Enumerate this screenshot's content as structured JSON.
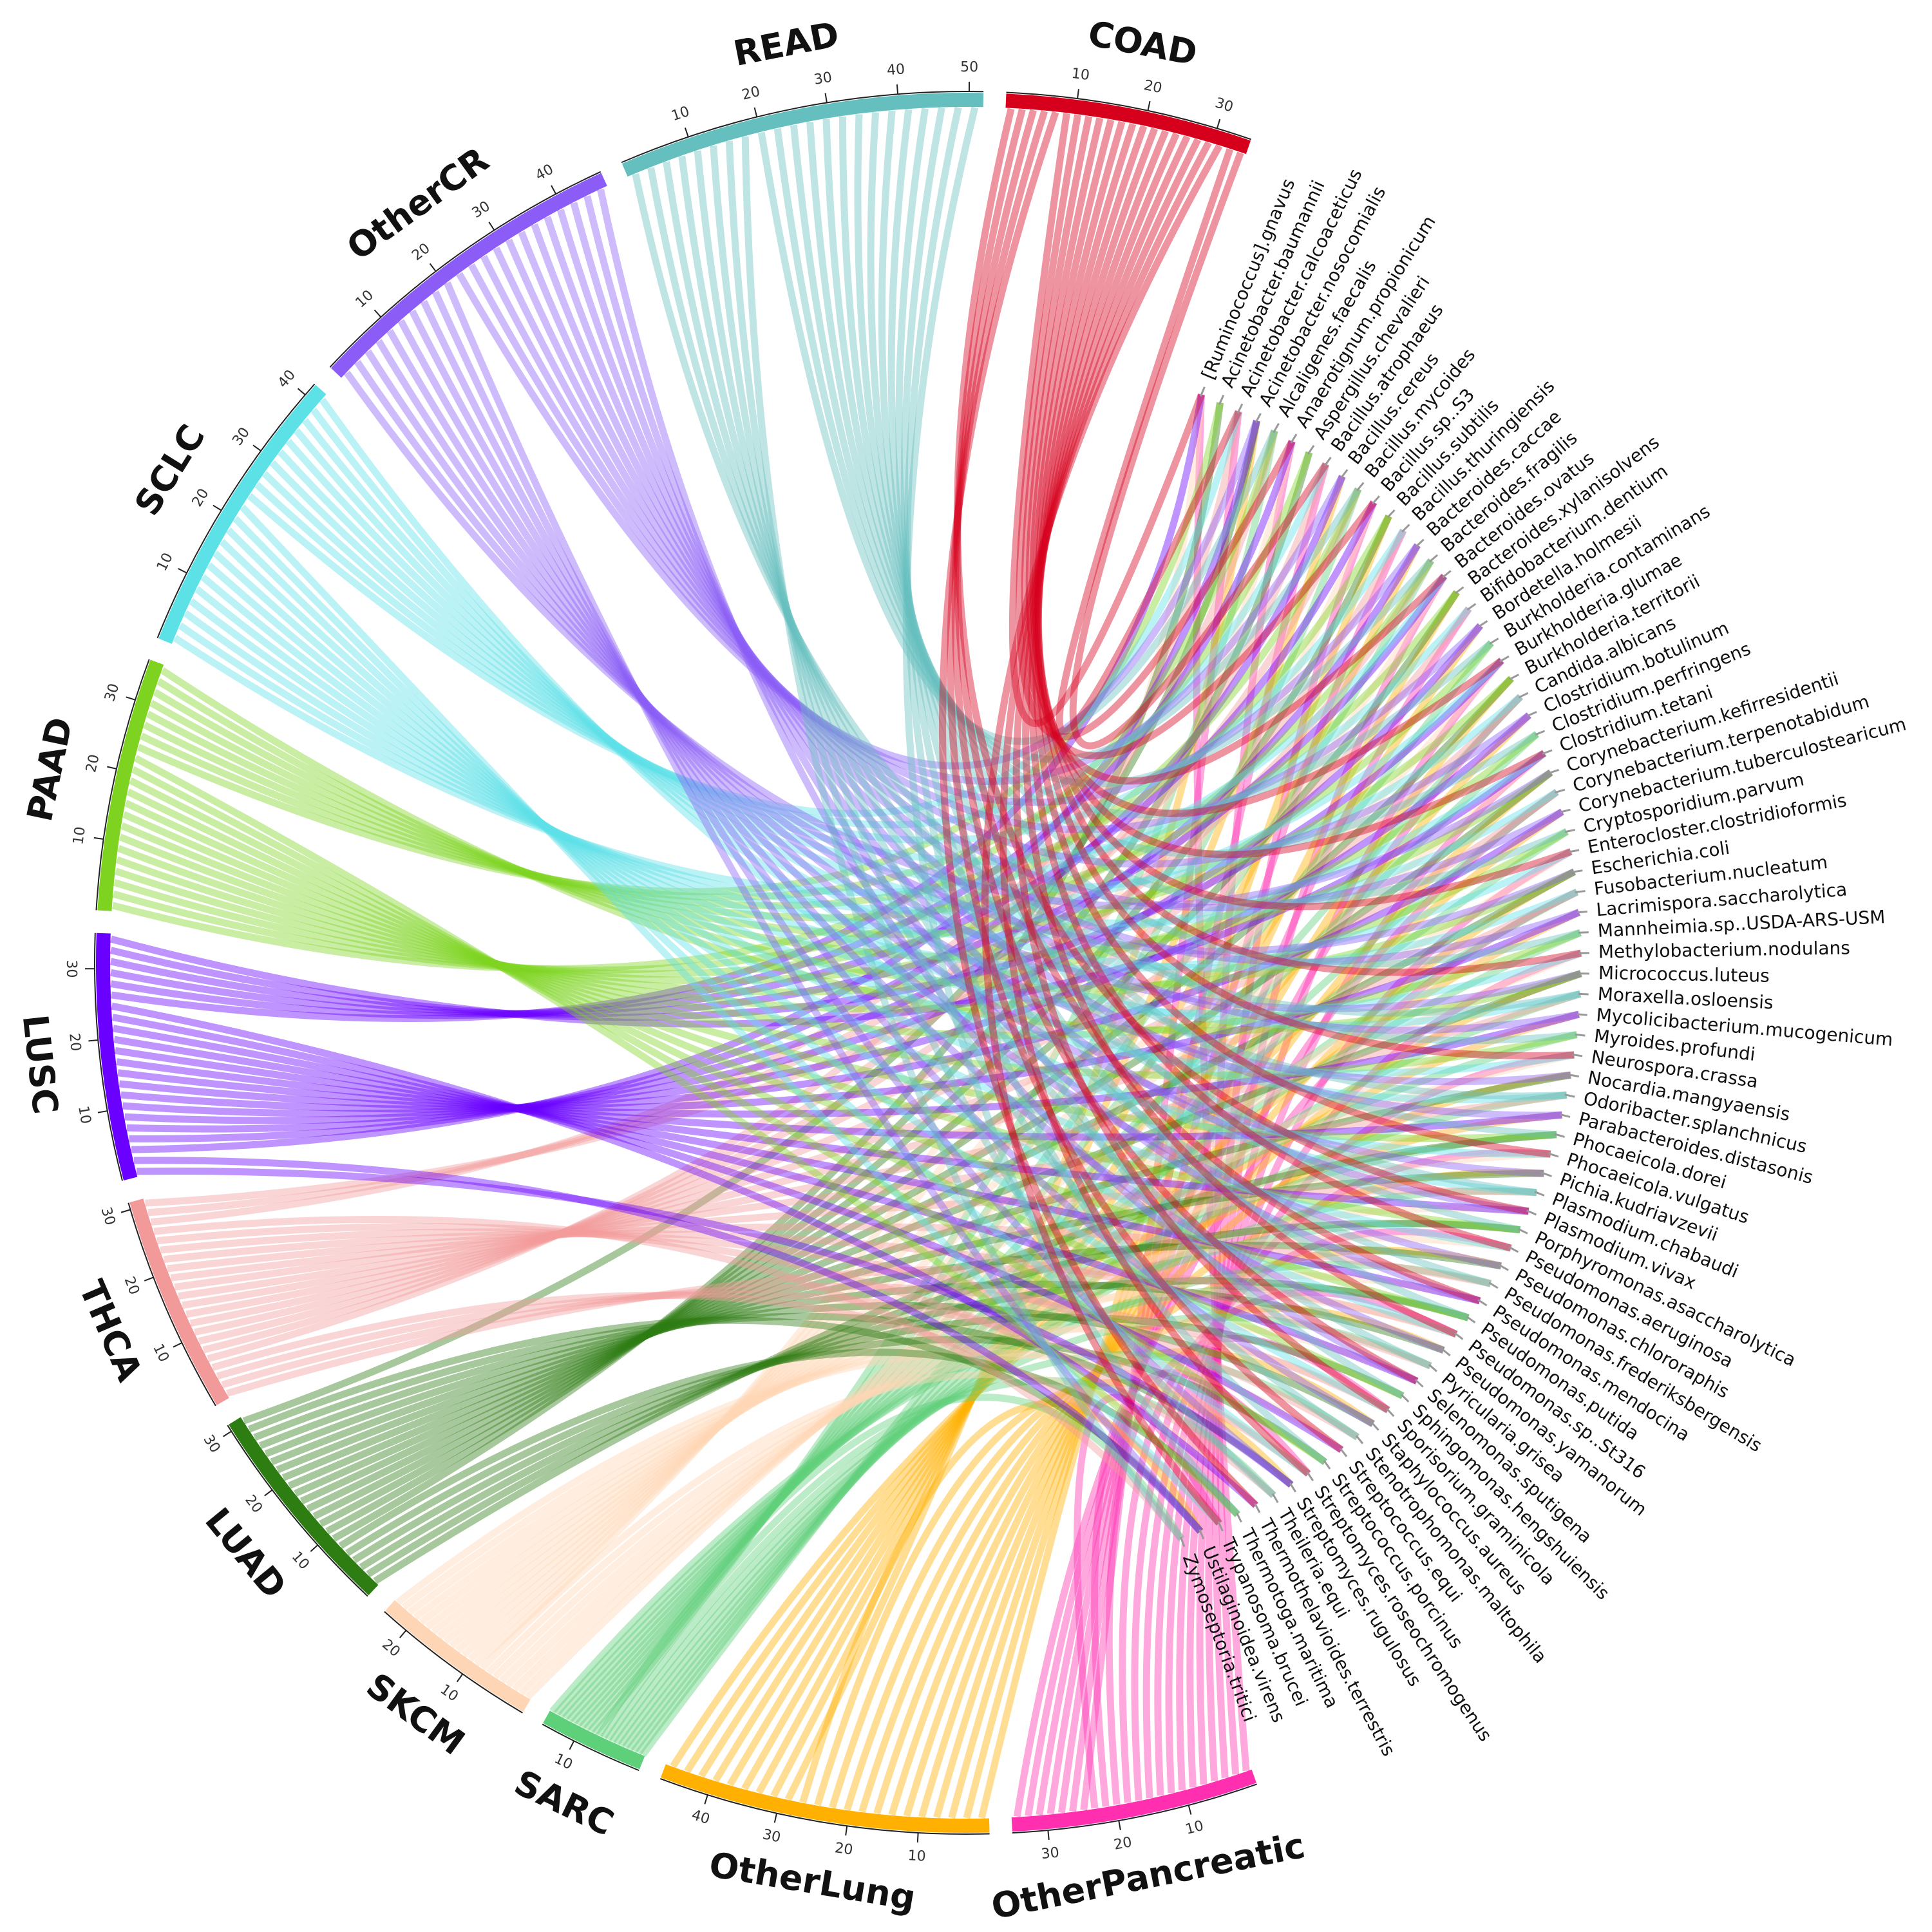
{
  "chart_data": {
    "type": "chord",
    "sectors": [
      {
        "name": "OtherPancreatic",
        "color": "#ff2fb0",
        "size": 35,
        "ticks": [
          10,
          20,
          30
        ]
      },
      {
        "name": "OtherLung",
        "color": "#ffb000",
        "size": 47,
        "ticks": [
          10,
          20,
          30,
          40
        ]
      },
      {
        "name": "SARC",
        "color": "#5fd07a",
        "size": 15,
        "ticks": [
          10
        ]
      },
      {
        "name": "SKCM",
        "color": "#ffd6b5",
        "size": 24,
        "ticks": [
          10,
          20
        ]
      },
      {
        "name": "LUAD",
        "color": "#2e7d12",
        "size": 31,
        "ticks": [
          10,
          20,
          30
        ]
      },
      {
        "name": "THCA",
        "color": "#f29a9a",
        "size": 31,
        "ticks": [
          10,
          20,
          30
        ]
      },
      {
        "name": "LUSC",
        "color": "#6a00ff",
        "size": 35,
        "ticks": [
          10,
          20,
          30
        ]
      },
      {
        "name": "PAAD",
        "color": "#7ed321",
        "size": 36,
        "ticks": [
          10,
          20,
          30
        ]
      },
      {
        "name": "SCLC",
        "color": "#5ce1e6",
        "size": 42,
        "ticks": [
          10,
          20,
          30,
          40
        ]
      },
      {
        "name": "OtherCR",
        "color": "#8b5cf6",
        "size": 47,
        "ticks": [
          10,
          20,
          30,
          40
        ]
      },
      {
        "name": "READ",
        "color": "#66bfbf",
        "size": 52,
        "ticks": [
          10,
          20,
          30,
          40,
          50
        ]
      },
      {
        "name": "COAD",
        "color": "#d6001c",
        "size": 35,
        "ticks": [
          10,
          20,
          30
        ]
      }
    ],
    "species": [
      "[Ruminococcus].gnavus",
      "Acinetobacter.baumannii",
      "Acinetobacter.calcoaceticus",
      "Acinetobacter.nosocomialis",
      "Alcaligenes.faecalis",
      "Anaerotignum.propionicum",
      "Aspergillus.chevalieri",
      "Bacillus.atrophaeus",
      "Bacillus.cereus",
      "Bacillus.mycoides",
      "Bacillus.sp..S3",
      "Bacillus.subtilis",
      "Bacillus.thuringiensis",
      "Bacteroides.caccae",
      "Bacteroides.fragilis",
      "Bacteroides.ovatus",
      "Bacteroides.xylanisolvens",
      "Bifidobacterium.dentium",
      "Bordetella.holmesii",
      "Burkholderia.contaminans",
      "Burkholderia.glumae",
      "Burkholderia.territorii",
      "Candida.albicans",
      "Clostridium.botulinum",
      "Clostridium.perfringens",
      "Clostridium.tetani",
      "Corynebacterium.kefirresidentii",
      "Corynebacterium.terpenotabidum",
      "Corynebacterium.tuberculostearicum",
      "Cryptosporidium.parvum",
      "Enterocloster.clostridioformis",
      "Escherichia.coli",
      "Fusobacterium.nucleatum",
      "Lacrimispora.saccharolytica",
      "Mannheimia.sp..USDA-ARS-USM",
      "Methylobacterium.nodulans",
      "Micrococcus.luteus",
      "Moraxella.osloensis",
      "Mycolicibacterium.mucogenicum",
      "Myroides.profundi",
      "Neurospora.crassa",
      "Nocardia.mangyaensis",
      "Odoribacter.splanchnicus",
      "Parabacteroides.distasonis",
      "Phocaeicola.dorei",
      "Phocaeicola.vulgatus",
      "Pichia.kudriavzevii",
      "Plasmodium.chabaudi",
      "Plasmodium.vivax",
      "Porphyromonas.asaccharolytica",
      "Pseudomonas.aeruginosa",
      "Pseudomonas.chlororaphis",
      "Pseudomonas.frederiksbergensis",
      "Pseudomonas.mendocina",
      "Pseudomonas.putida",
      "Pseudomonas.sp..St316",
      "Pseudomonas.yamanorum",
      "Pyricularia.grisea",
      "Selenomonas.sputigena",
      "Sphingomonas.hengshuiensis",
      "Sporisorium.graminicola",
      "Staphylococcus.aureus",
      "Stenotrophomonas.maltophila",
      "Streptococcus.equi",
      "Streptococcus.porcinus",
      "Streptomyces.roseochromogenus",
      "Streptomyces.rugulosus",
      "Theileria.equi",
      "Thermothelavioides.terrestris",
      "Thermotoga.maritima",
      "Trypanosoma.brucei",
      "Ustilaginoidea.virens",
      "Zymoseptoria.tritici"
    ]
  }
}
